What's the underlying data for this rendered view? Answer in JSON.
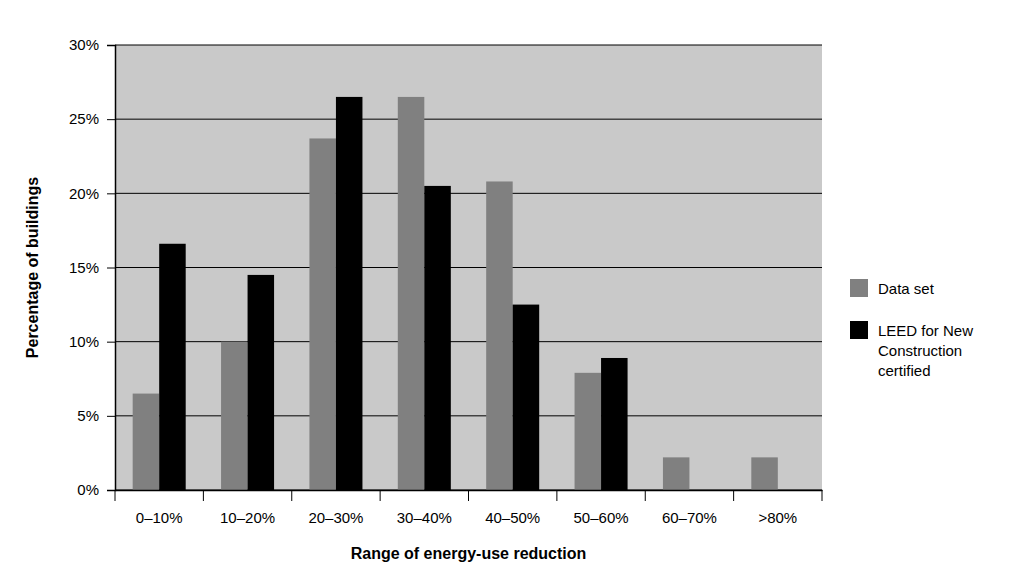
{
  "chart_data": {
    "type": "bar",
    "x_label": "Range of energy-use reduction",
    "y_label": "Percentage of buildings",
    "categories": [
      "0–10%",
      "10–20%",
      "20–30%",
      "30–40%",
      "40–50%",
      "50–60%",
      "60–70%",
      ">80%"
    ],
    "series": [
      {
        "name": "Data set",
        "color": "#808080",
        "values": [
          6.5,
          10,
          23.7,
          26.5,
          20.8,
          7.9,
          2.2,
          2.2
        ]
      },
      {
        "name": "LEED for New Construction certified",
        "color": "#000000",
        "values": [
          16.6,
          14.5,
          26.5,
          20.5,
          12.5,
          8.9,
          0,
          0
        ]
      }
    ],
    "ylim": [
      0,
      30
    ],
    "yticks": [
      {
        "value": 0,
        "label": "0%"
      },
      {
        "value": 5,
        "label": "5%"
      },
      {
        "value": 10,
        "label": "10%"
      },
      {
        "value": 15,
        "label": "15%"
      },
      {
        "value": 20,
        "label": "20%"
      },
      {
        "value": 25,
        "label": "25%"
      },
      {
        "value": 30,
        "label": "30%"
      }
    ],
    "grid": true,
    "legend": "right"
  }
}
